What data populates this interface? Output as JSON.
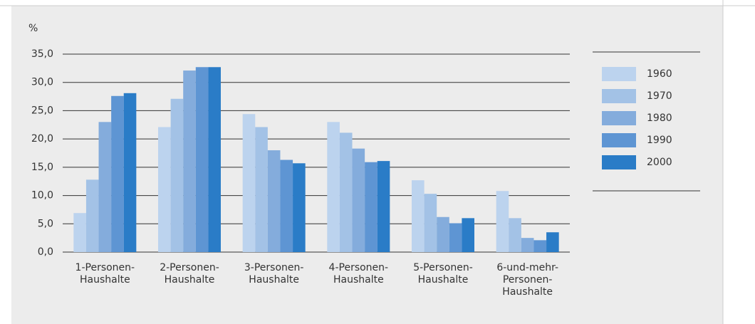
{
  "chart_data": {
    "type": "bar",
    "y_label": "%",
    "categories": [
      "1-Personen-\nHaushalte",
      "2-Personen-\nHaushalte",
      "3-Personen-\nHaushalte",
      "4-Personen-\nHaushalte",
      "5-Personen-\nHaushalte",
      "6-und-mehr-\nPersonen-\nHaushalte"
    ],
    "series": [
      {
        "name": "1960",
        "color": "#bcd3ee",
        "values": [
          6.9,
          22.1,
          24.4,
          23.0,
          12.7,
          10.8
        ]
      },
      {
        "name": "1970",
        "color": "#a3c2e6",
        "values": [
          12.8,
          27.1,
          22.1,
          21.1,
          10.3,
          6.0
        ]
      },
      {
        "name": "1980",
        "color": "#84acdc",
        "values": [
          23.0,
          32.1,
          18.0,
          18.3,
          6.2,
          2.5
        ]
      },
      {
        "name": "1990",
        "color": "#5e95d3",
        "values": [
          27.6,
          32.7,
          16.3,
          15.9,
          5.1,
          2.1
        ]
      },
      {
        "name": "2000",
        "color": "#2a7cc7",
        "values": [
          28.1,
          32.7,
          15.7,
          16.1,
          6.0,
          3.5
        ]
      }
    ],
    "ylim": [
      0,
      35
    ],
    "yticks": [
      {
        "value": 0,
        "label": "0,0"
      },
      {
        "value": 5,
        "label": "5,0"
      },
      {
        "value": 10,
        "label": "10,0"
      },
      {
        "value": 15,
        "label": "15,0"
      },
      {
        "value": 20,
        "label": "20,0"
      },
      {
        "value": 25,
        "label": "25,0"
      },
      {
        "value": 30,
        "label": "30,0"
      },
      {
        "value": 35,
        "label": "35,0"
      }
    ],
    "grid": true
  }
}
